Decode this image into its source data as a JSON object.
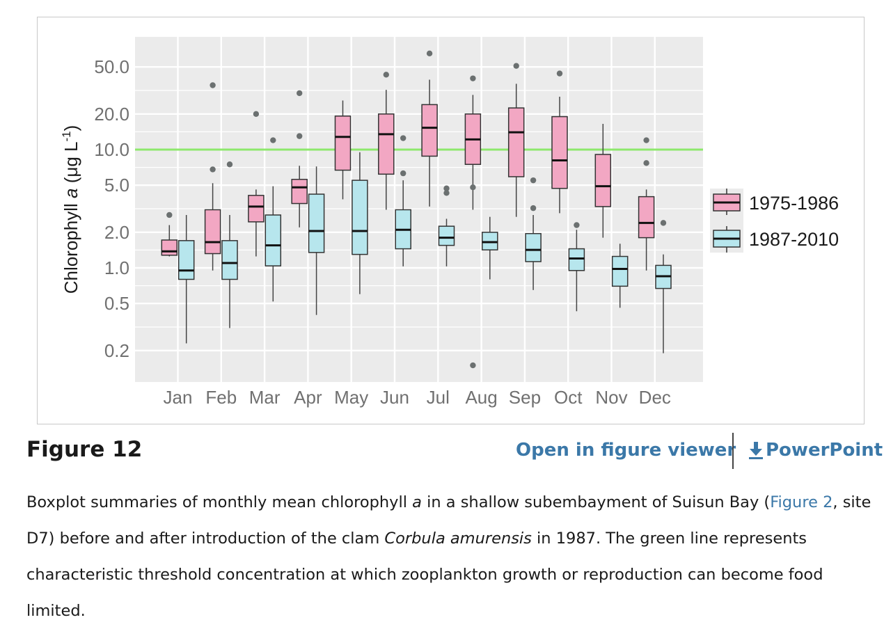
{
  "figure": {
    "title": "Figure 12",
    "open_viewer_label": "Open in figure viewer",
    "powerpoint_label": "PowerPoint",
    "caption": {
      "part1": "Boxplot summaries of monthly mean chlorophyll ",
      "italic_a": "a",
      "part2": " in a shallow subembayment of Suisun Bay (",
      "figure_ref": "Figure 2",
      "part3": ", site D7) before and after introduction of the clam ",
      "species": "Corbula amurensis",
      "part4": " in 1987. The green line represents characteristic threshold concentration at which zooplankton growth or reproduction can become food limited."
    }
  },
  "colors": {
    "panel_bg": "#ebebeb",
    "grid": "#ffffff",
    "series1_fill": "#f2a7c3",
    "series2_fill": "#b7e6ed",
    "threshold": "#8ee86c",
    "outlier": "#6b7070",
    "link": "#3b78a8"
  },
  "chart_data": {
    "type": "boxplot",
    "yscale": "log",
    "ylim": [
      0.125,
      80
    ],
    "ylabel_text": "Chlorophyll ",
    "ylabel_italic": "a",
    "ylabel_unit": "(μg L",
    "ylabel_exp": "-1",
    "ylabel_close": ")",
    "yticks": [
      0.2,
      0.5,
      1.0,
      2.0,
      5.0,
      10.0,
      20.0,
      50.0
    ],
    "ytick_labels": [
      "0.2",
      "0.5",
      "1.0",
      "2.0",
      "5.0",
      "10.0",
      "20.0",
      "50.0"
    ],
    "categories": [
      "Jan",
      "Feb",
      "Mar",
      "Apr",
      "May",
      "Jun",
      "Jul",
      "Aug",
      "Sep",
      "Oct",
      "Nov",
      "Dec"
    ],
    "threshold": 10.0,
    "legend_position": "right",
    "series": [
      {
        "name": "1975-1986",
        "boxes": [
          {
            "min": 1.25,
            "q1": 1.28,
            "median": 1.38,
            "q3": 1.72,
            "max": 2.3,
            "outliers": [
              2.8
            ]
          },
          {
            "min": 0.95,
            "q1": 1.32,
            "median": 1.65,
            "q3": 3.1,
            "max": 5.2,
            "outliers": [
              6.8,
              35
            ]
          },
          {
            "min": 1.25,
            "q1": 2.45,
            "median": 3.3,
            "q3": 4.1,
            "max": 4.6,
            "outliers": [
              20
            ]
          },
          {
            "min": 2.2,
            "q1": 3.5,
            "median": 4.8,
            "q3": 5.6,
            "max": 7.3,
            "outliers": [
              13,
              30
            ]
          },
          {
            "min": 3.8,
            "q1": 6.7,
            "median": 12.8,
            "q3": 19.2,
            "max": 26,
            "outliers": []
          },
          {
            "min": 3.1,
            "q1": 6.2,
            "median": 13.5,
            "q3": 20,
            "max": 32,
            "outliers": [
              43
            ]
          },
          {
            "min": 3.3,
            "q1": 8.8,
            "median": 15.3,
            "q3": 24,
            "max": 39,
            "outliers": [
              65
            ]
          },
          {
            "min": 3.1,
            "q1": 7.5,
            "median": 12.2,
            "q3": 20,
            "max": 29,
            "outliers": [
              4.8,
              0.15,
              40
            ]
          },
          {
            "min": 2.7,
            "q1": 5.9,
            "median": 14,
            "q3": 22.5,
            "max": 36,
            "outliers": [
              51
            ]
          },
          {
            "min": 2.9,
            "q1": 4.7,
            "median": 8.1,
            "q3": 19,
            "max": 28,
            "outliers": [
              44
            ]
          },
          {
            "min": 1.8,
            "q1": 3.3,
            "median": 4.9,
            "q3": 9.1,
            "max": 16.5,
            "outliers": []
          },
          {
            "min": 0.95,
            "q1": 1.8,
            "median": 2.4,
            "q3": 4.0,
            "max": 4.6,
            "outliers": [
              7.7,
              12
            ]
          }
        ]
      },
      {
        "name": "1987-2010",
        "boxes": [
          {
            "min": 0.23,
            "q1": 0.8,
            "median": 0.95,
            "q3": 1.7,
            "max": 2.8,
            "outliers": []
          },
          {
            "min": 0.31,
            "q1": 0.8,
            "median": 1.1,
            "q3": 1.7,
            "max": 2.8,
            "outliers": [
              7.5
            ]
          },
          {
            "min": 0.52,
            "q1": 1.04,
            "median": 1.55,
            "q3": 2.8,
            "max": 4.9,
            "outliers": [
              12
            ]
          },
          {
            "min": 0.4,
            "q1": 1.35,
            "median": 2.05,
            "q3": 4.2,
            "max": 7.2,
            "outliers": []
          },
          {
            "min": 0.6,
            "q1": 1.3,
            "median": 2.05,
            "q3": 5.5,
            "max": 9.5,
            "outliers": []
          },
          {
            "min": 1.03,
            "q1": 1.45,
            "median": 2.1,
            "q3": 3.1,
            "max": 5.5,
            "outliers": [
              6.3,
              12.5
            ]
          },
          {
            "min": 1.03,
            "q1": 1.55,
            "median": 1.8,
            "q3": 2.25,
            "max": 2.6,
            "outliers": [
              4.3,
              4.7
            ]
          },
          {
            "min": 0.8,
            "q1": 1.42,
            "median": 1.65,
            "q3": 2.0,
            "max": 2.7,
            "outliers": []
          },
          {
            "min": 0.65,
            "q1": 1.13,
            "median": 1.42,
            "q3": 1.95,
            "max": 2.8,
            "outliers": [
              3.2,
              5.5
            ]
          },
          {
            "min": 0.43,
            "q1": 0.95,
            "median": 1.2,
            "q3": 1.45,
            "max": 2.1,
            "outliers": [
              2.3
            ]
          },
          {
            "min": 0.46,
            "q1": 0.7,
            "median": 0.98,
            "q3": 1.25,
            "max": 1.6,
            "outliers": []
          },
          {
            "min": 0.19,
            "q1": 0.67,
            "median": 0.85,
            "q3": 1.05,
            "max": 1.3,
            "outliers": [
              2.4
            ]
          }
        ]
      }
    ]
  }
}
